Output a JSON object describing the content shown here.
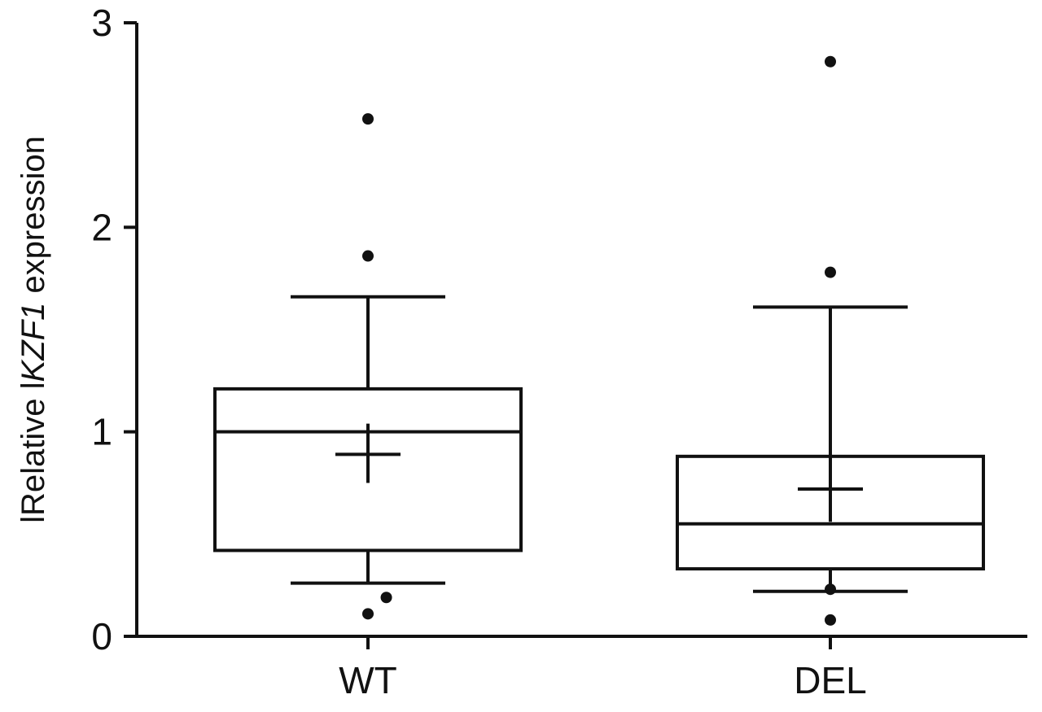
{
  "chart_data": {
    "type": "box",
    "ylabel_parts": [
      {
        "text": "lRelative l",
        "italic": false
      },
      {
        "text": "KZF1",
        "italic": true
      },
      {
        "text": " expression",
        "italic": false
      }
    ],
    "xlabel": "",
    "ylim": [
      0,
      3
    ],
    "yticks": [
      0,
      1,
      2,
      3
    ],
    "categories": [
      "WT",
      "DEL"
    ],
    "series": [
      {
        "category": "WT",
        "whisker_low": 0.26,
        "q1": 0.42,
        "median": 1.0,
        "q3": 1.21,
        "whisker_high": 1.66,
        "mean": 0.89,
        "mean_error": [
          0.75,
          1.04
        ],
        "outliers": [
          [
            0,
            2.53
          ],
          [
            0,
            1.86
          ],
          [
            0,
            0.11
          ],
          [
            0.06,
            0.19
          ]
        ]
      },
      {
        "category": "DEL",
        "whisker_low": 0.22,
        "q1": 0.33,
        "median": 0.55,
        "q3": 0.88,
        "whisker_high": 1.61,
        "mean": 0.72,
        "mean_error": [
          0.56,
          0.88
        ],
        "outliers": [
          [
            0,
            2.81
          ],
          [
            0,
            1.78
          ],
          [
            0,
            0.23
          ],
          [
            0,
            0.08
          ]
        ]
      }
    ],
    "grid": false,
    "legend": "none",
    "colors": {
      "stroke": "#111111",
      "background": "#ffffff"
    }
  }
}
